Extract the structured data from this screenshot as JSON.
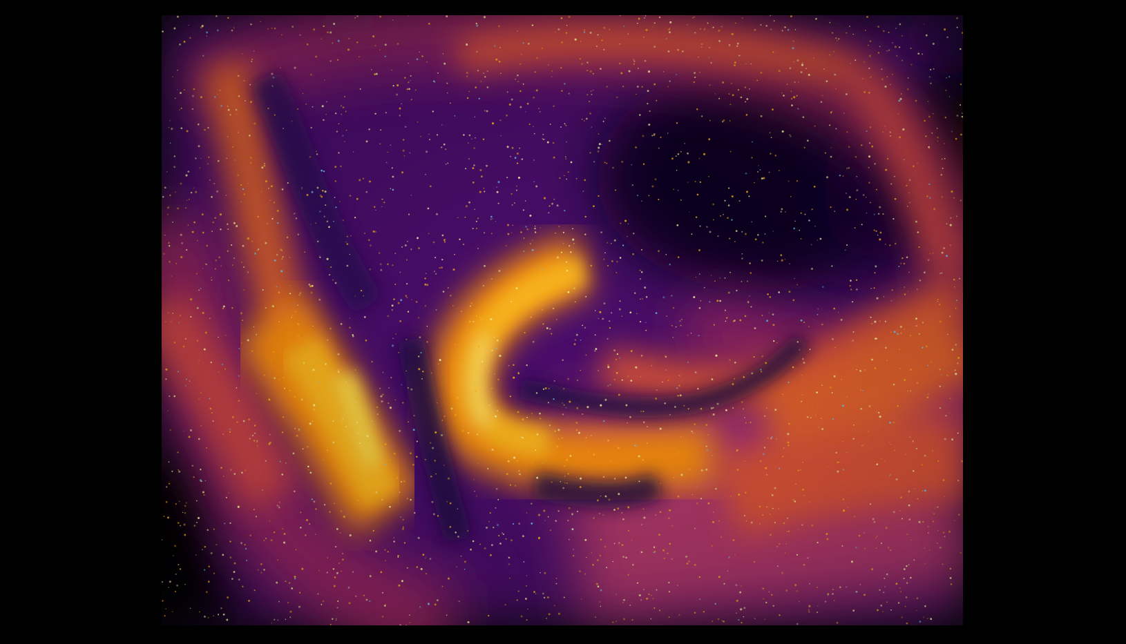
{
  "image": {
    "description_free": true,
    "colormap": "inferno",
    "palette": {
      "background": "#000000",
      "low": "#1b0c41",
      "mid_low": "#4a0c6b",
      "mid": "#a52c60",
      "mid_high": "#ed6925",
      "high": "#fbb61a",
      "peak": "#fcffa4",
      "speckle_cyan": "#6fd3ff"
    }
  }
}
